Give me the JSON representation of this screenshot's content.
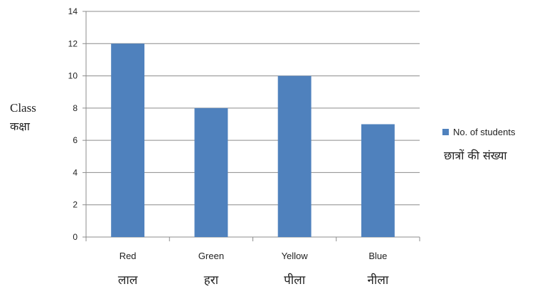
{
  "chart_data": {
    "type": "bar",
    "categories": [
      "Red",
      "Green",
      "Yellow",
      "Blue"
    ],
    "categories_hindi": [
      "लाल",
      "हरा",
      "पीला",
      "नीला"
    ],
    "series": [
      {
        "name": "No. of students",
        "values": [
          12,
          8,
          10,
          7
        ]
      }
    ],
    "ylabel": "Class",
    "ylabel_hindi": "कक्षा",
    "legend_hindi": "छात्रों की संख्या",
    "ylim": [
      0,
      14
    ],
    "yticks": [
      0,
      2,
      4,
      6,
      8,
      10,
      12,
      14
    ],
    "grid": true,
    "legend_position": "right",
    "bar_color": "#4f81bd"
  }
}
